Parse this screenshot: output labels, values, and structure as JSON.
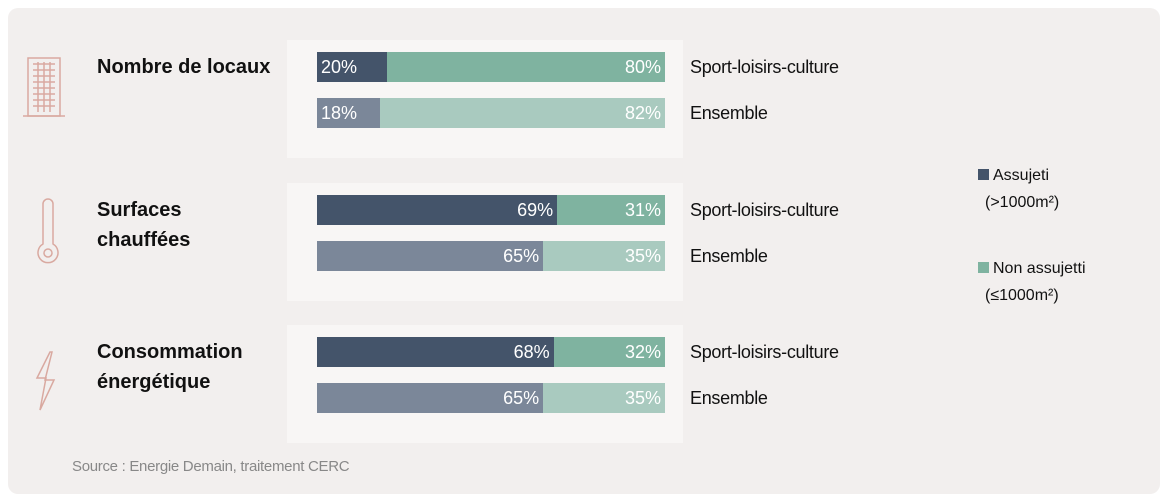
{
  "chart_data": [
    {
      "type": "bar",
      "stacked": true,
      "title": "Nombre de locaux",
      "xlim": [
        0,
        100
      ],
      "categories": [
        "Sport-loisirs-culture",
        "Ensemble"
      ],
      "series": [
        {
          "name": "Assujeti",
          "colors": [
            "#44546a",
            "#7b8799"
          ],
          "values": [
            20,
            18
          ],
          "value_labels": [
            "20%",
            "18%"
          ]
        },
        {
          "name": "Non assujetti",
          "colors": [
            "#7fb3a0",
            "#a9cabf"
          ],
          "values": [
            80,
            82
          ],
          "value_labels": [
            "80%",
            "82%"
          ]
        }
      ]
    },
    {
      "type": "bar",
      "stacked": true,
      "title": "Surfaces chauffées",
      "xlim": [
        0,
        100
      ],
      "categories": [
        "Sport-loisirs-culture",
        "Ensemble"
      ],
      "series": [
        {
          "name": "Assujeti",
          "colors": [
            "#44546a",
            "#7b8799"
          ],
          "values": [
            69,
            65
          ],
          "value_labels": [
            "69%",
            "65%"
          ]
        },
        {
          "name": "Non assujetti",
          "colors": [
            "#7fb3a0",
            "#a9cabf"
          ],
          "values": [
            31,
            35
          ],
          "value_labels": [
            "31%",
            "35%"
          ]
        }
      ]
    },
    {
      "type": "bar",
      "stacked": true,
      "title": "Consommation énergétique",
      "xlim": [
        0,
        100
      ],
      "categories": [
        "Sport-loisirs-culture",
        "Ensemble"
      ],
      "series": [
        {
          "name": "Assujeti",
          "colors": [
            "#44546a",
            "#7b8799"
          ],
          "values": [
            68,
            65
          ],
          "value_labels": [
            "68%",
            "65%"
          ]
        },
        {
          "name": "Non assujetti",
          "colors": [
            "#7fb3a0",
            "#a9cabf"
          ],
          "values": [
            32,
            35
          ],
          "value_labels": [
            "32%",
            "35%"
          ]
        }
      ]
    }
  ],
  "legend_notes": [
    "(>1000m²)",
    "(≤1000m²)"
  ],
  "source": "Source : Energie Demain, traitement CERC"
}
